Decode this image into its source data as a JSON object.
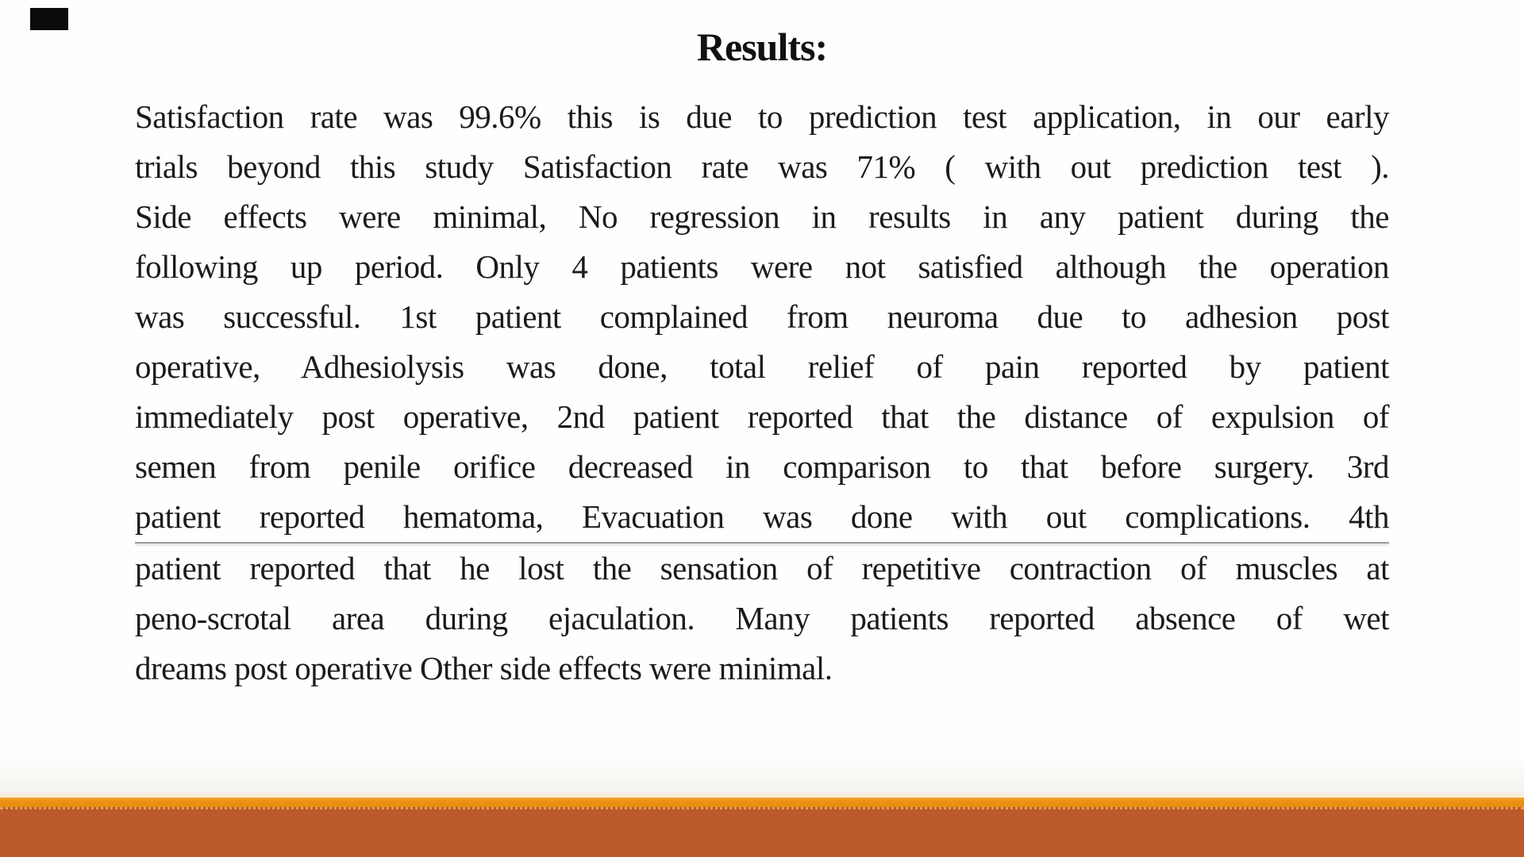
{
  "slide": {
    "title": "Results:",
    "body_lines": [
      "Satisfaction rate was 99.6% this is due to prediction test application, in our early",
      "trials beyond this study Satisfaction rate was 71% ( with out prediction test ).",
      "Side effects were minimal, No regression in results in any patient during the",
      "following up period. Only 4 patients were not satisfied although the operation",
      "was successful. 1st patient complained from neuroma due to adhesion post",
      "operative, Adhesiolysis was done, total relief of pain reported by patient",
      "immediately post operative, 2nd patient reported that the distance of expulsion of",
      "semen from penile orifice decreased in comparison to that before surgery. 3rd",
      "patient reported hematoma, Evacuation was done with out complications. 4th",
      "patient reported that he lost the sensation of repetitive contraction of muscles at",
      "peno-scrotal area during ejaculation. Many patients reported absence of wet",
      "dreams post operative Other side effects were minimal."
    ],
    "colors": {
      "text": "#1B1B1B",
      "rule_under_line_9": "#9B9B9B",
      "footer_accent_strip": "#ED9212",
      "footer_band": "#BB5A2A",
      "footer_cream_line": "#F8EFD6",
      "corner_mark": "#0B0B0B"
    }
  }
}
